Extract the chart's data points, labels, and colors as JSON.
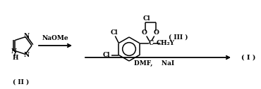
{
  "bg_color": "#ffffff",
  "line_color": "#000000",
  "fig_width": 3.7,
  "fig_height": 1.27,
  "dpi": 100,
  "label_II": "( II )",
  "label_I": "( I )",
  "label_III": "( III )",
  "reagent1": "NaOMe",
  "reagent2": "DMF,    NaI",
  "H_label": "H"
}
